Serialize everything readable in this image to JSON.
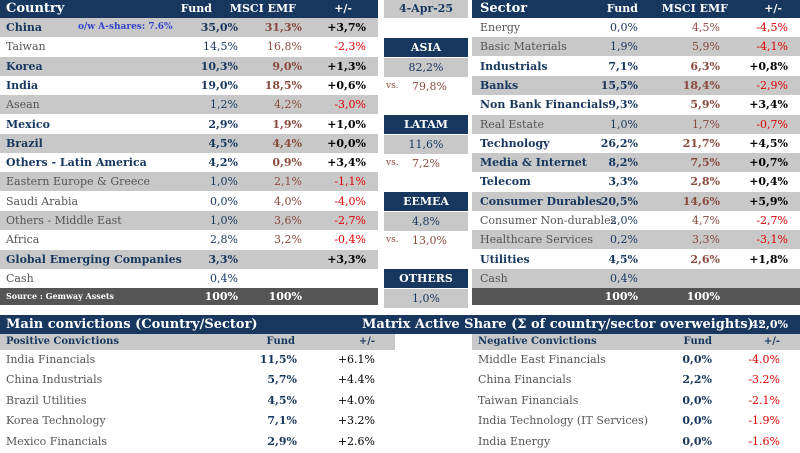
{
  "country_panel": {
    "headers": {
      "country": "Country",
      "fund": "Fund",
      "emf": "MSCI EMF",
      "diff": "+/-"
    },
    "ow_ashares": "o/w A-shares:  7.6%",
    "rows": [
      {
        "name": "China",
        "fund": "35,0%",
        "emf": "31,3%",
        "diff": "+3,7%",
        "bold": true,
        "shade": true,
        "neg": false
      },
      {
        "name": "Taiwan",
        "fund": "14,5%",
        "emf": "16,8%",
        "diff": "-2,3%",
        "bold": false,
        "shade": false,
        "neg": true
      },
      {
        "name": "Korea",
        "fund": "10,3%",
        "emf": "9,0%",
        "diff": "+1,3%",
        "bold": true,
        "shade": true,
        "neg": false
      },
      {
        "name": "India",
        "fund": "19,0%",
        "emf": "18,5%",
        "diff": "+0,6%",
        "bold": true,
        "shade": false,
        "neg": false
      },
      {
        "name": "Asean",
        "fund": "1,2%",
        "emf": "4,2%",
        "diff": "-3,0%",
        "bold": false,
        "shade": true,
        "neg": true
      },
      {
        "name": "Mexico",
        "fund": "2,9%",
        "emf": "1,9%",
        "diff": "+1,0%",
        "bold": true,
        "shade": false,
        "neg": false
      },
      {
        "name": "Brazil",
        "fund": "4,5%",
        "emf": "4,4%",
        "diff": "+0,0%",
        "bold": true,
        "shade": true,
        "neg": false
      },
      {
        "name": "Others - Latin America",
        "fund": "4,2%",
        "emf": "0,9%",
        "diff": "+3,4%",
        "bold": true,
        "shade": false,
        "neg": false
      },
      {
        "name": "Eastern Europe & Greece",
        "fund": "1,0%",
        "emf": "2,1%",
        "diff": "-1,1%",
        "bold": false,
        "shade": true,
        "neg": true
      },
      {
        "name": "Saudi Arabia",
        "fund": "0,0%",
        "emf": "4,0%",
        "diff": "-4,0%",
        "bold": false,
        "shade": false,
        "neg": true
      },
      {
        "name": "Others - Middle East",
        "fund": "1,0%",
        "emf": "3,6%",
        "diff": "-2,7%",
        "bold": false,
        "shade": true,
        "neg": true
      },
      {
        "name": "Africa",
        "fund": "2,8%",
        "emf": "3,2%",
        "diff": "-0,4%",
        "bold": false,
        "shade": false,
        "neg": true
      },
      {
        "name": "Global Emerging Companies",
        "fund": "3,3%",
        "emf": "",
        "diff": "+3,3%",
        "bold": true,
        "shade": true,
        "neg": false
      },
      {
        "name": "Cash",
        "fund": "0,4%",
        "emf": "",
        "diff": "",
        "bold": false,
        "shade": false,
        "neg": false
      }
    ],
    "footer": {
      "source": "Source : Gemway Assets",
      "fund": "100%",
      "emf": "100%"
    }
  },
  "middle_panel": {
    "date": "4-Apr-25",
    "vs": "vs.",
    "regions": [
      {
        "name": "ASIA",
        "fund": "82,2%",
        "bench": "79,8%"
      },
      {
        "name": "LATAM",
        "fund": "11,6%",
        "bench": "7,2%"
      },
      {
        "name": "EEMEA",
        "fund": "4,8%",
        "bench": "13,0%"
      },
      {
        "name": "OTHERS",
        "fund": "1,0%",
        "bench": ""
      }
    ]
  },
  "sector_panel": {
    "headers": {
      "sector": "Sector",
      "fund": "Fund",
      "emf": "MSCI EMF",
      "diff": "+/-"
    },
    "rows": [
      {
        "name": "Energy",
        "fund": "0,0%",
        "emf": "4,5%",
        "diff": "-4,5%",
        "bold": false,
        "shade": false,
        "neg": true
      },
      {
        "name": "Basic Materials",
        "fund": "1,9%",
        "emf": "5,9%",
        "diff": "-4,1%",
        "bold": false,
        "shade": true,
        "neg": true
      },
      {
        "name": "Industrials",
        "fund": "7,1%",
        "emf": "6,3%",
        "diff": "+0,8%",
        "bold": true,
        "shade": false,
        "neg": false
      },
      {
        "name": "Banks",
        "fund": "15,5%",
        "emf": "18,4%",
        "diff": "-2,9%",
        "bold": true,
        "shade": true,
        "neg": true
      },
      {
        "name": "Non Bank Financials",
        "fund": "9,3%",
        "emf": "5,9%",
        "diff": "+3,4%",
        "bold": true,
        "shade": false,
        "neg": false
      },
      {
        "name": "Real Estate",
        "fund": "1,0%",
        "emf": "1,7%",
        "diff": "-0,7%",
        "bold": false,
        "shade": true,
        "neg": true
      },
      {
        "name": "Technology",
        "fund": "26,2%",
        "emf": "21,7%",
        "diff": "+4,5%",
        "bold": true,
        "shade": false,
        "neg": false
      },
      {
        "name": "Media & Internet",
        "fund": "8,2%",
        "emf": "7,5%",
        "diff": "+0,7%",
        "bold": true,
        "shade": true,
        "neg": false
      },
      {
        "name": "Telecom",
        "fund": "3,3%",
        "emf": "2,8%",
        "diff": "+0,4%",
        "bold": true,
        "shade": false,
        "neg": false
      },
      {
        "name": "Consumer Durables",
        "fund": "20,5%",
        "emf": "14,6%",
        "diff": "+5,9%",
        "bold": true,
        "shade": true,
        "neg": false
      },
      {
        "name": "Consumer Non-durables",
        "fund": "2,0%",
        "emf": "4,7%",
        "diff": "-2,7%",
        "bold": false,
        "shade": false,
        "neg": true
      },
      {
        "name": "Healthcare Services",
        "fund": "0,2%",
        "emf": "3,3%",
        "diff": "-3,1%",
        "bold": false,
        "shade": true,
        "neg": true
      },
      {
        "name": "Utilities",
        "fund": "4,5%",
        "emf": "2,6%",
        "diff": "+1,8%",
        "bold": true,
        "shade": false,
        "neg": false
      },
      {
        "name": "Cash",
        "fund": "0,4%",
        "emf": "",
        "diff": "",
        "bold": false,
        "shade": true,
        "neg": false
      }
    ],
    "footer": {
      "fund": "100%",
      "emf": "100%"
    }
  },
  "convictions": {
    "title": "Main convictions (Country/Sector)",
    "matrix_label": "Matrix  Active Share (Σ of country/sector overweights) :",
    "matrix_value": "42,0%",
    "positive": {
      "header": "Positive Convictions",
      "fund_header": "Fund",
      "diff_header": "+/-",
      "rows": [
        {
          "name": "India Financials",
          "fund": "11,5%",
          "diff": "+6.1%"
        },
        {
          "name": "China Industrials",
          "fund": "5,7%",
          "diff": "+4.4%"
        },
        {
          "name": "Brazil Utilities",
          "fund": "4,5%",
          "diff": "+4.0%"
        },
        {
          "name": "Korea Technology",
          "fund": "7,1%",
          "diff": "+3.2%"
        },
        {
          "name": "Mexico Financials",
          "fund": "2,9%",
          "diff": "+2.6%"
        }
      ]
    },
    "negative": {
      "header": "Negative Convictions",
      "fund_header": "Fund",
      "diff_header": "+/-",
      "rows": [
        {
          "name": "Middle East Financials",
          "fund": "0,0%",
          "diff": "-4.0%"
        },
        {
          "name": "China Financials",
          "fund": "2,2%",
          "diff": "-3.2%"
        },
        {
          "name": "Taiwan Financials",
          "fund": "0,0%",
          "diff": "-2.1%"
        },
        {
          "name": "India Technology (IT Services)",
          "fund": "0,0%",
          "diff": "-1.9%"
        },
        {
          "name": "India Energy",
          "fund": "0,0%",
          "diff": "-1.6%"
        }
      ]
    }
  },
  "colors": {
    "navy": "#17375e",
    "shade": "#c8c8c8",
    "negative": "#e00000",
    "bench": "#8a4a3e",
    "footer": "#555555"
  }
}
